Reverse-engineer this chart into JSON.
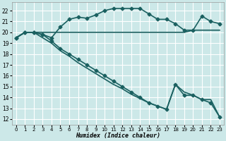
{
  "xlabel": "Humidex (Indice chaleur)",
  "bg_color": "#cce8e8",
  "grid_color": "#ffffff",
  "line_color": "#1a6060",
  "xlim": [
    -0.5,
    23.5
  ],
  "ylim": [
    11.5,
    22.8
  ],
  "xticks": [
    0,
    1,
    2,
    3,
    4,
    5,
    6,
    7,
    8,
    9,
    10,
    11,
    12,
    13,
    14,
    15,
    16,
    17,
    18,
    19,
    20,
    21,
    22,
    23
  ],
  "yticks": [
    12,
    13,
    14,
    15,
    16,
    17,
    18,
    19,
    20,
    21,
    22
  ],
  "series": [
    {
      "x": [
        0,
        1,
        2,
        3,
        4,
        5,
        6,
        7,
        8,
        9,
        10,
        11,
        12,
        13,
        14,
        15,
        16,
        17,
        18,
        19,
        20,
        21,
        22,
        23
      ],
      "y": [
        19.5,
        20.0,
        20.0,
        20.0,
        20.0,
        20.0,
        20.0,
        20.0,
        20.0,
        20.0,
        20.0,
        20.0,
        20.0,
        20.0,
        20.0,
        20.0,
        20.0,
        20.0,
        20.0,
        20.0,
        20.2,
        20.2,
        20.2,
        20.2
      ],
      "marker": null,
      "linewidth": 1.2
    },
    {
      "x": [
        0,
        1,
        2,
        3,
        4,
        5,
        6,
        7,
        8,
        9,
        10,
        11,
        12,
        13,
        14,
        15,
        16,
        17,
        18,
        19,
        20,
        21,
        22,
        23
      ],
      "y": [
        19.5,
        20.0,
        20.0,
        19.8,
        19.5,
        20.5,
        21.2,
        21.4,
        21.3,
        21.6,
        22.0,
        22.2,
        22.2,
        22.2,
        22.2,
        21.7,
        21.2,
        21.2,
        20.8,
        20.2,
        20.2,
        21.5,
        21.0,
        20.8
      ],
      "marker": "D",
      "markersize": 2.5,
      "linewidth": 1.2
    },
    {
      "x": [
        0,
        1,
        2,
        3,
        4,
        5,
        6,
        7,
        8,
        9,
        10,
        11,
        12,
        13,
        14,
        15,
        16,
        17,
        18,
        19,
        20,
        21,
        22,
        23
      ],
      "y": [
        19.5,
        20.0,
        20.0,
        19.5,
        19.0,
        18.3,
        17.8,
        17.2,
        16.7,
        16.2,
        15.7,
        15.2,
        14.8,
        14.3,
        13.9,
        13.5,
        13.2,
        12.9,
        15.2,
        14.5,
        14.2,
        13.8,
        13.8,
        12.2
      ],
      "marker": null,
      "linewidth": 1.2
    },
    {
      "x": [
        0,
        1,
        2,
        3,
        4,
        5,
        6,
        7,
        8,
        9,
        10,
        11,
        12,
        13,
        14,
        15,
        16,
        17,
        18,
        19,
        20,
        21,
        22,
        23
      ],
      "y": [
        19.5,
        20.0,
        20.0,
        19.8,
        19.2,
        18.5,
        18.0,
        17.5,
        17.0,
        16.5,
        16.0,
        15.5,
        15.0,
        14.5,
        14.0,
        13.5,
        13.2,
        12.9,
        15.2,
        14.2,
        14.2,
        13.8,
        13.5,
        12.2
      ],
      "marker": "D",
      "markersize": 2.5,
      "linewidth": 1.2
    }
  ]
}
